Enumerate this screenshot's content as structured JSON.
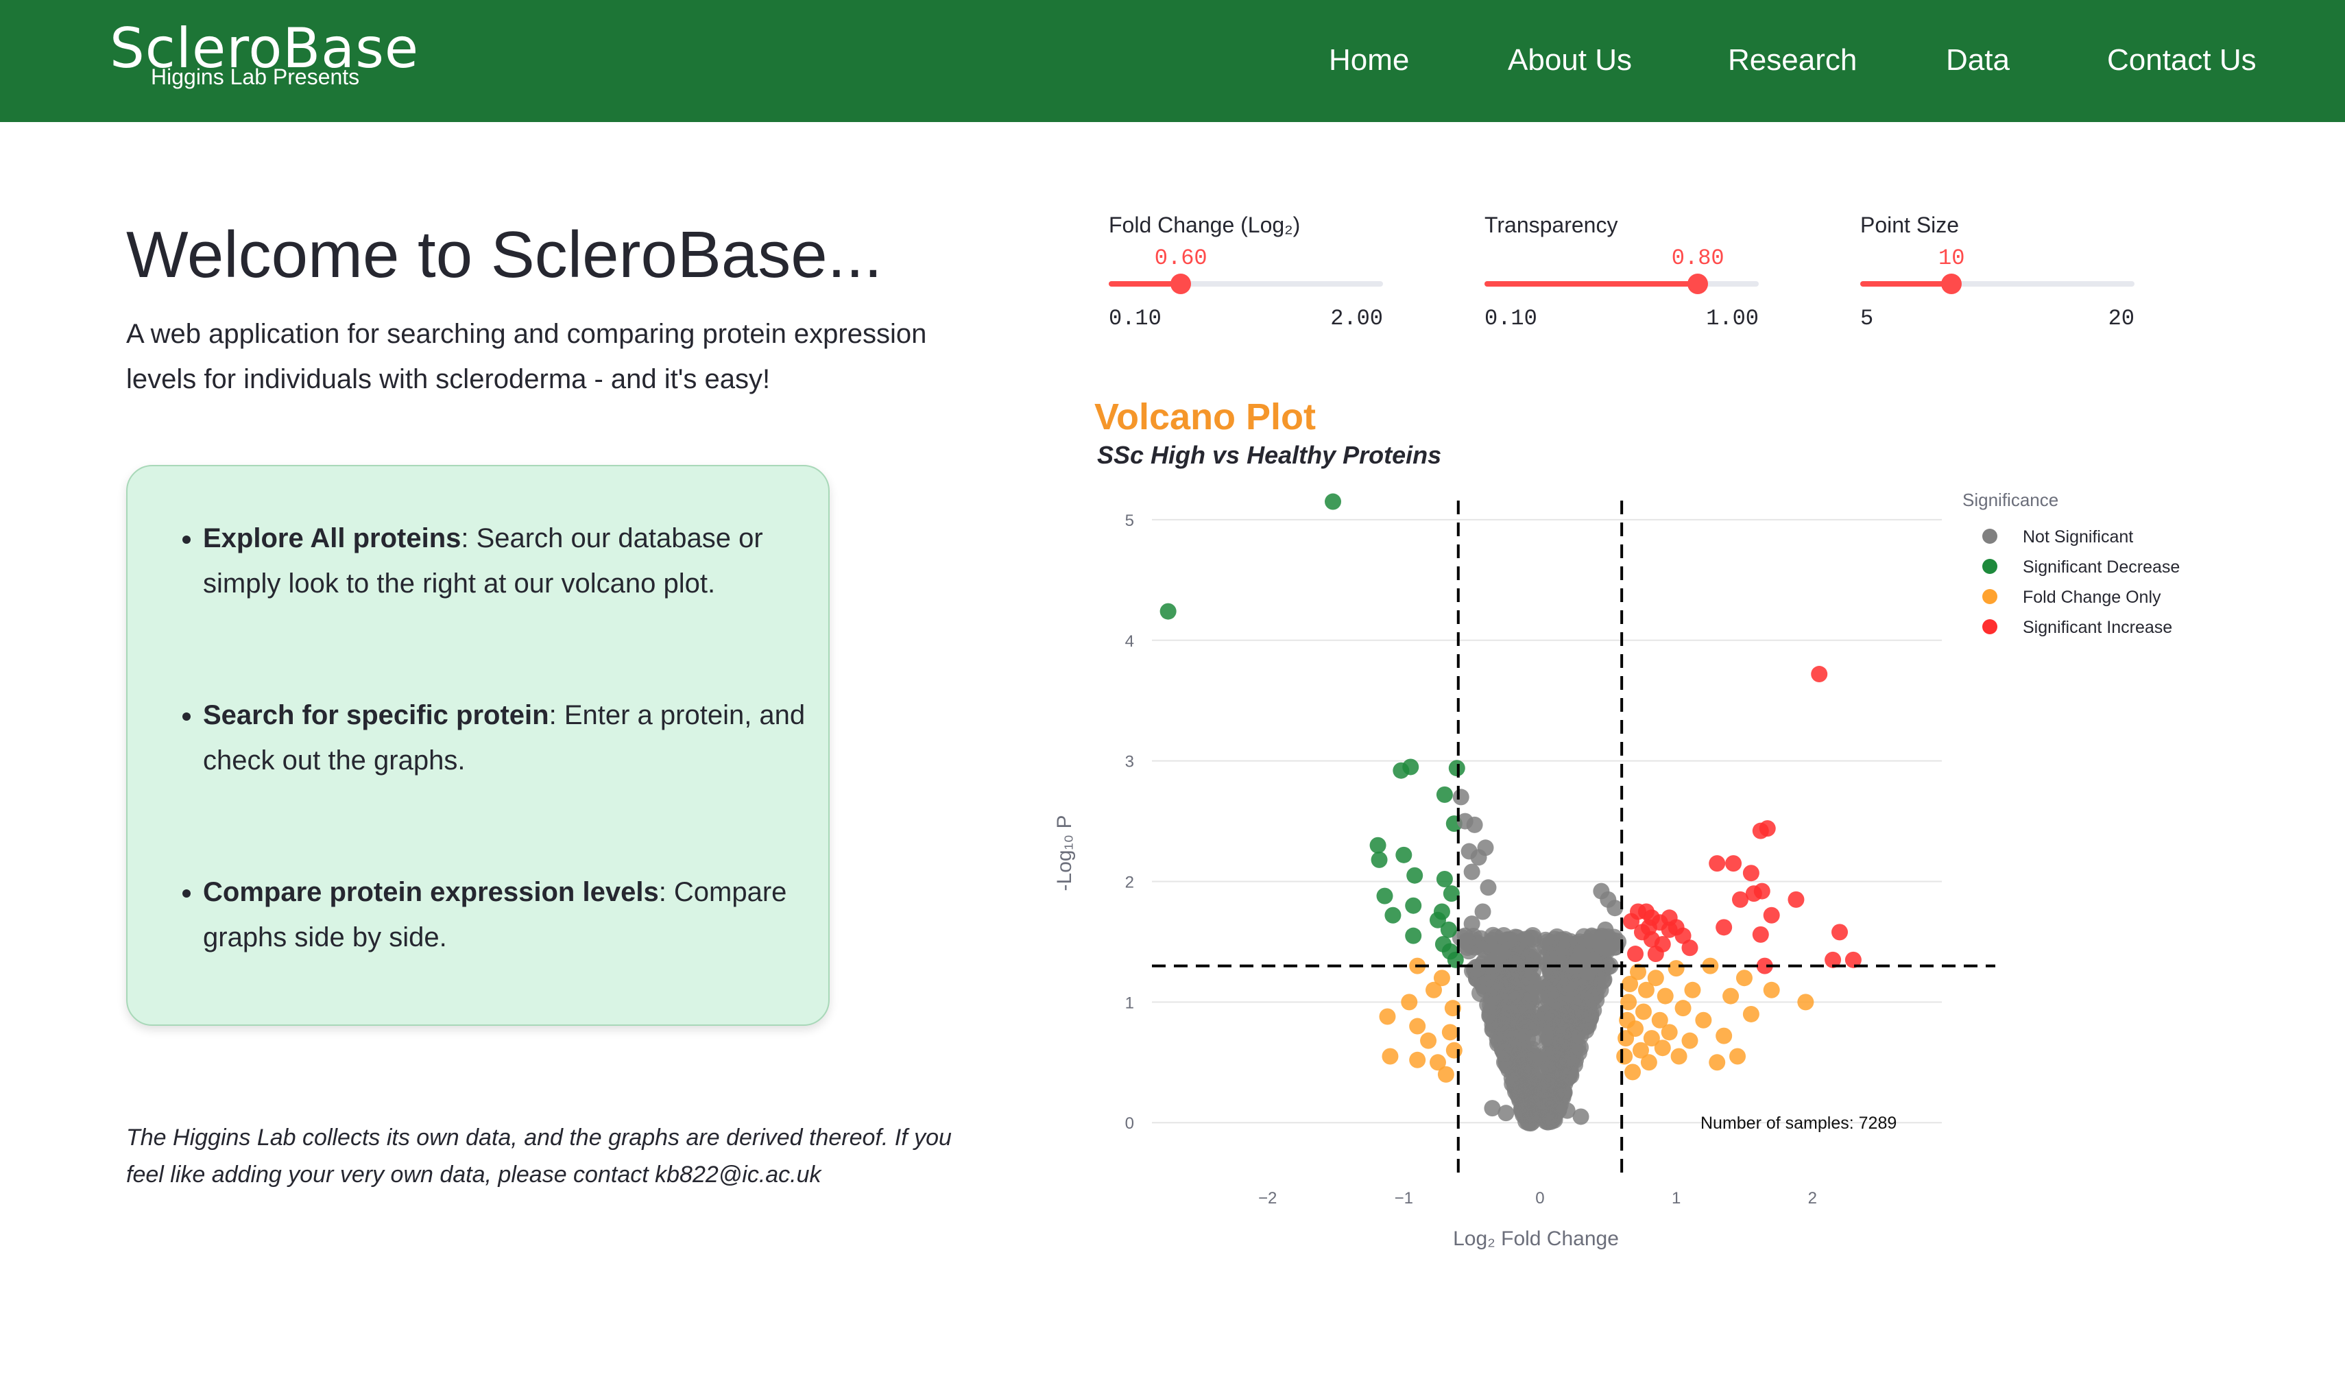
{
  "brand": {
    "name": "ScleroBase",
    "tagline": "Higgins Lab Presents"
  },
  "nav": [
    {
      "label": "Home"
    },
    {
      "label": "About Us"
    },
    {
      "label": "Research"
    },
    {
      "label": "Data"
    },
    {
      "label": "Contact Us"
    }
  ],
  "intro": {
    "title": "Welcome to ScleroBase...",
    "description": "A web application for searching and comparing protein expression levels for individuals with scleroderma - and it's easy!"
  },
  "features": [
    {
      "bold": "Explore All proteins",
      "text": ": Search our database or simply look to the right at our volcano plot."
    },
    {
      "bold": "Search for specific protein",
      "text": ": Enter a protein, and check out the graphs."
    },
    {
      "bold": "Compare protein expression levels",
      "text": ": Compare graphs side by side."
    }
  ],
  "footer_note": "The Higgins Lab collects its own data, and the graphs are derived thereof. If you feel like adding your very own data, please contact kb822@ic.ac.uk",
  "sliders": [
    {
      "label": "Fold Change (Log₂)",
      "value": "0.60",
      "min": "0.10",
      "max": "2.00",
      "fraction": 0.263
    },
    {
      "label": "Transparency",
      "value": "0.80",
      "min": "0.10",
      "max": "1.00",
      "fraction": 0.778
    },
    {
      "label": "Point Size",
      "value": "10",
      "min": "5",
      "max": "20",
      "fraction": 0.333
    }
  ],
  "colors": {
    "nav_bg": "#1d7536",
    "accent": "#ff4b4b",
    "card_bg": "#d9f4e4",
    "not_significant": "#808080",
    "significant_decrease": "#1e8a3c",
    "fold_change_only": "#ffa22e",
    "significant_increase": "#ff2e2e",
    "title_orange": "#f5962a"
  },
  "chart_data": {
    "type": "scatter",
    "title": "Volcano Plot",
    "subtitle": "SSc High vs Healthy Proteins",
    "xlabel": "Log₂ Fold Change",
    "ylabel": "-Log₁₀ P",
    "xlim": [
      -3.0,
      2.95
    ],
    "ylim": [
      -0.3,
      5.5
    ],
    "xticks": [
      -2,
      -1,
      0,
      1,
      2
    ],
    "yticks": [
      0,
      1,
      2,
      3,
      4,
      5
    ],
    "grid": "horizontal",
    "thresholds": {
      "fold_change": 0.6,
      "p_log": 1.3
    },
    "annotation": "Number of samples: 7289",
    "legend": {
      "title": "Significance",
      "position": "top-right",
      "entries": [
        "Not Significant",
        "Significant Decrease",
        "Fold Change Only",
        "Significant Increase"
      ]
    },
    "series": [
      {
        "name": "Significant Decrease",
        "points": [
          [
            -2.73,
            4.24
          ],
          [
            -1.52,
            5.15
          ],
          [
            -0.95,
            2.95
          ],
          [
            -1.02,
            2.92
          ],
          [
            -0.61,
            2.94
          ],
          [
            -0.7,
            2.72
          ],
          [
            -0.63,
            2.48
          ],
          [
            -1.19,
            2.3
          ],
          [
            -1.18,
            2.18
          ],
          [
            -1.0,
            2.22
          ],
          [
            -0.92,
            2.05
          ],
          [
            -0.7,
            2.02
          ],
          [
            -1.14,
            1.88
          ],
          [
            -0.93,
            1.8
          ],
          [
            -1.08,
            1.72
          ],
          [
            -0.72,
            1.75
          ],
          [
            -0.75,
            1.68
          ],
          [
            -0.65,
            1.9
          ],
          [
            -0.67,
            1.6
          ],
          [
            -0.93,
            1.55
          ],
          [
            -0.71,
            1.48
          ],
          [
            -0.66,
            1.42
          ],
          [
            -0.62,
            1.35
          ]
        ]
      },
      {
        "name": "Fold Change Only",
        "points": [
          [
            -1.1,
            0.55
          ],
          [
            -0.9,
            0.52
          ],
          [
            -1.12,
            0.88
          ],
          [
            -0.96,
            1.0
          ],
          [
            -0.9,
            0.8
          ],
          [
            -0.9,
            1.3
          ],
          [
            -0.82,
            0.68
          ],
          [
            -0.75,
            0.5
          ],
          [
            -0.78,
            1.1
          ],
          [
            -0.72,
            1.2
          ],
          [
            -0.69,
            0.4
          ],
          [
            -0.66,
            0.75
          ],
          [
            -0.63,
            0.6
          ],
          [
            -0.64,
            0.95
          ],
          [
            0.62,
            0.55
          ],
          [
            0.63,
            0.7
          ],
          [
            0.64,
            0.85
          ],
          [
            0.65,
            1.0
          ],
          [
            0.66,
            1.15
          ],
          [
            0.68,
            0.42
          ],
          [
            0.7,
            0.78
          ],
          [
            0.72,
            1.25
          ],
          [
            0.74,
            0.6
          ],
          [
            0.76,
            0.92
          ],
          [
            0.78,
            1.1
          ],
          [
            0.8,
            0.5
          ],
          [
            0.82,
            0.7
          ],
          [
            0.85,
            1.2
          ],
          [
            0.88,
            0.85
          ],
          [
            0.9,
            0.62
          ],
          [
            0.92,
            1.05
          ],
          [
            0.95,
            0.75
          ],
          [
            1.0,
            1.28
          ],
          [
            1.02,
            0.55
          ],
          [
            1.05,
            0.95
          ],
          [
            1.1,
            0.68
          ],
          [
            1.12,
            1.1
          ],
          [
            1.2,
            0.85
          ],
          [
            1.25,
            1.3
          ],
          [
            1.3,
            0.5
          ],
          [
            1.35,
            0.72
          ],
          [
            1.4,
            1.05
          ],
          [
            1.45,
            0.55
          ],
          [
            1.5,
            1.2
          ],
          [
            1.55,
            0.9
          ],
          [
            1.7,
            1.1
          ],
          [
            1.95,
            1.0
          ]
        ]
      },
      {
        "name": "Significant Increase",
        "points": [
          [
            2.05,
            3.72
          ],
          [
            1.62,
            2.42
          ],
          [
            1.67,
            2.44
          ],
          [
            1.55,
            2.07
          ],
          [
            1.42,
            2.15
          ],
          [
            1.3,
            2.15
          ],
          [
            1.57,
            1.9
          ],
          [
            1.63,
            1.92
          ],
          [
            1.47,
            1.85
          ],
          [
            1.7,
            1.72
          ],
          [
            1.35,
            1.62
          ],
          [
            1.88,
            1.85
          ],
          [
            1.62,
            1.56
          ],
          [
            0.67,
            1.67
          ],
          [
            0.72,
            1.75
          ],
          [
            0.75,
            1.58
          ],
          [
            0.78,
            1.75
          ],
          [
            0.8,
            1.62
          ],
          [
            0.82,
            1.52
          ],
          [
            0.85,
            1.4
          ],
          [
            0.88,
            1.66
          ],
          [
            0.9,
            1.48
          ],
          [
            0.95,
            1.6
          ],
          [
            1.0,
            1.62
          ],
          [
            1.05,
            1.55
          ],
          [
            1.1,
            1.45
          ],
          [
            1.65,
            1.3
          ],
          [
            2.2,
            1.58
          ],
          [
            2.15,
            1.35
          ],
          [
            2.3,
            1.35
          ],
          [
            0.7,
            1.4
          ],
          [
            0.82,
            1.7
          ],
          [
            0.95,
            1.7
          ]
        ]
      },
      {
        "name": "Not Significant",
        "points": [
          [
            -0.58,
            2.7
          ],
          [
            -0.55,
            2.5
          ],
          [
            -0.48,
            2.47
          ],
          [
            -0.52,
            2.25
          ],
          [
            -0.4,
            2.28
          ],
          [
            -0.45,
            2.2
          ],
          [
            -0.5,
            2.08
          ],
          [
            -0.38,
            1.95
          ],
          [
            -0.42,
            1.75
          ],
          [
            -0.5,
            1.65
          ],
          [
            -0.55,
            1.55
          ],
          [
            0.45,
            1.92
          ],
          [
            0.5,
            1.85
          ],
          [
            0.55,
            1.78
          ],
          [
            0.38,
            1.55
          ],
          [
            0.48,
            1.6
          ],
          [
            0.5,
            1.45
          ],
          [
            0.3,
            1.38
          ],
          [
            0.35,
            1.25
          ],
          [
            0.25,
            1.3
          ],
          [
            -0.35,
            1.3
          ],
          [
            -0.3,
            1.4
          ],
          [
            -0.35,
            0.12
          ],
          [
            -0.25,
            0.08
          ],
          [
            0.2,
            0.1
          ],
          [
            0.3,
            0.05
          ]
        ]
      }
    ],
    "density_cloud": {
      "name": "Not Significant",
      "description": "dense v-shaped cloud",
      "count": 7289
    }
  }
}
